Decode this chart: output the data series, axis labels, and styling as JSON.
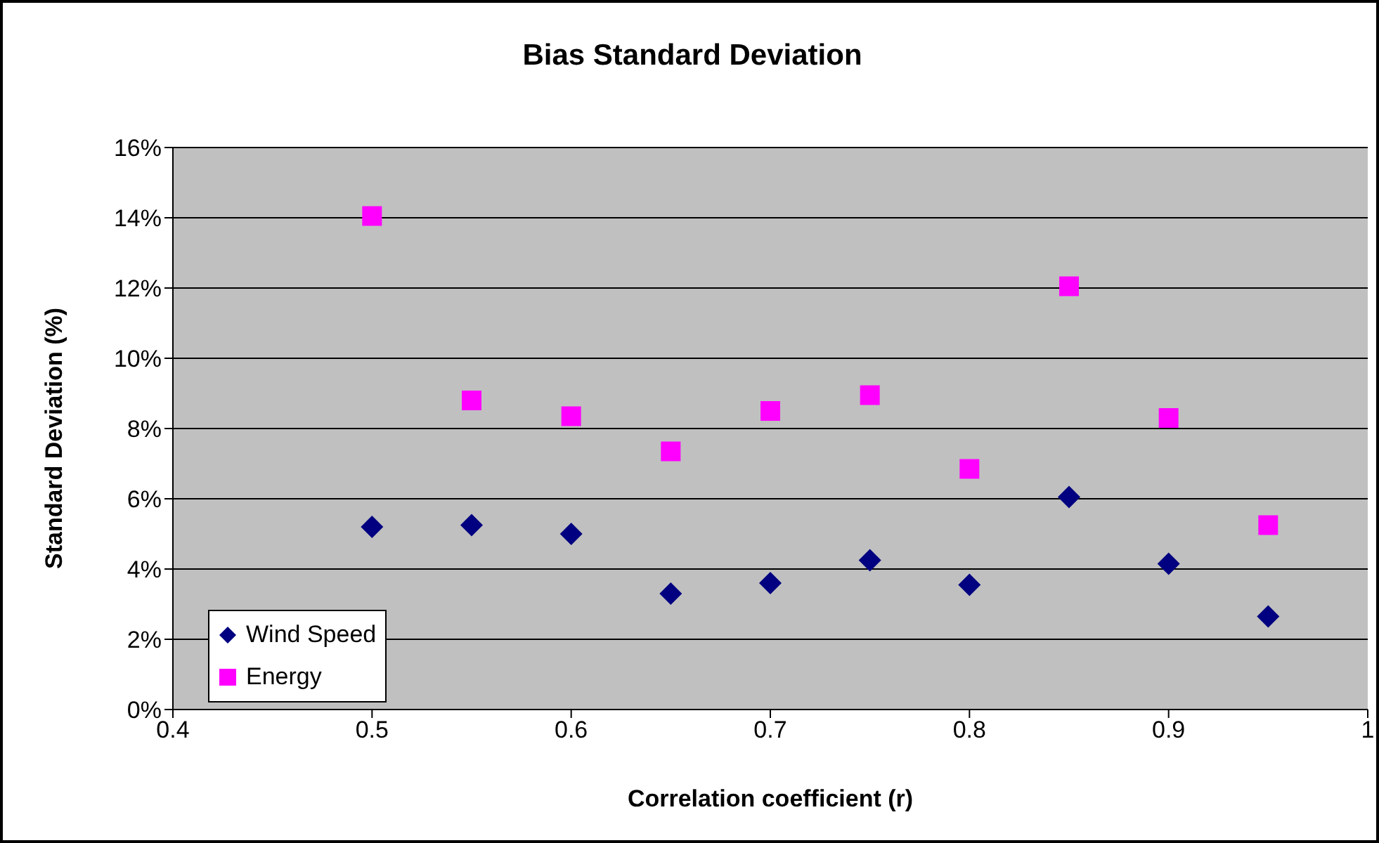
{
  "chart_data": {
    "type": "scatter",
    "title": "Bias Standard Deviation",
    "xlabel": "Correlation coefficient (r)",
    "ylabel": "Standard Deviation  (%)",
    "xlim": [
      0.4,
      1
    ],
    "xticks": [
      0.4,
      0.5,
      0.6,
      0.7,
      0.8,
      0.9,
      1
    ],
    "ylim": [
      0,
      16
    ],
    "yticks": [
      {
        "value": 0,
        "label": "0%"
      },
      {
        "value": 2,
        "label": "2%"
      },
      {
        "value": 4,
        "label": "4%"
      },
      {
        "value": 6,
        "label": "6%"
      },
      {
        "value": 8,
        "label": "8%"
      },
      {
        "value": 10,
        "label": "10%"
      },
      {
        "value": 12,
        "label": "12%"
      },
      {
        "value": 14,
        "label": "14%"
      },
      {
        "value": 16,
        "label": "16%"
      }
    ],
    "x": [
      0.5,
      0.55,
      0.6,
      0.65,
      0.7,
      0.75,
      0.8,
      0.85,
      0.9,
      0.95
    ],
    "series": [
      {
        "name": "Wind Speed",
        "color": "#000080",
        "marker": "diamond",
        "values": [
          5.2,
          5.25,
          5.0,
          3.3,
          3.6,
          4.25,
          3.55,
          6.05,
          4.15,
          2.65
        ]
      },
      {
        "name": "Energy",
        "color": "#ff00ff",
        "marker": "square",
        "values": [
          14.05,
          8.8,
          8.35,
          7.35,
          8.5,
          8.95,
          6.85,
          12.05,
          8.3,
          5.25
        ]
      }
    ],
    "grid": "y",
    "legend": "bottom left"
  }
}
